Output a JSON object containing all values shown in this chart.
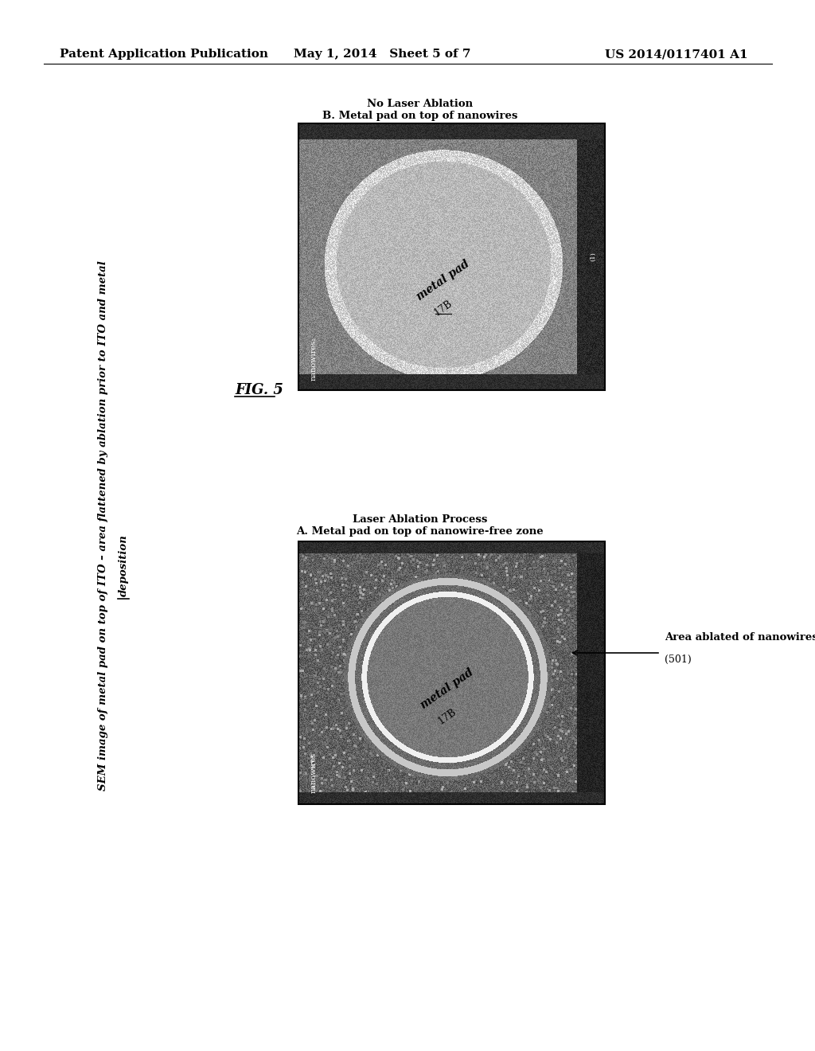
{
  "page_header_left": "Patent Application Publication",
  "page_header_center": "May 1, 2014   Sheet 5 of 7",
  "page_header_right": "US 2014/0117401 A1",
  "fig_label": "FIG. 5",
  "main_title_italic": "SEM image of metal pad on top of ITO – area flattened by ablation prior to ITO and metal",
  "main_title_italic2": "deposition",
  "label_B_title": "B. Metal pad on top of nanowires",
  "label_B_subtitle": "No Laser Ablation",
  "label_A_title": "A. Metal pad on top of nanowire-free zone",
  "label_A_subtitle": "Laser Ablation Process",
  "annotation_right": "Area ablated of nanowires",
  "annotation_number": "(501)",
  "nanowires_label_bottom": "nanowires",
  "nanowires_label_bottom_B": "nanowires₁",
  "pad_label": "metal pad",
  "pad_number": "17B",
  "bg_color": "#ffffff",
  "header_font_size": 11,
  "body_font_size": 10
}
